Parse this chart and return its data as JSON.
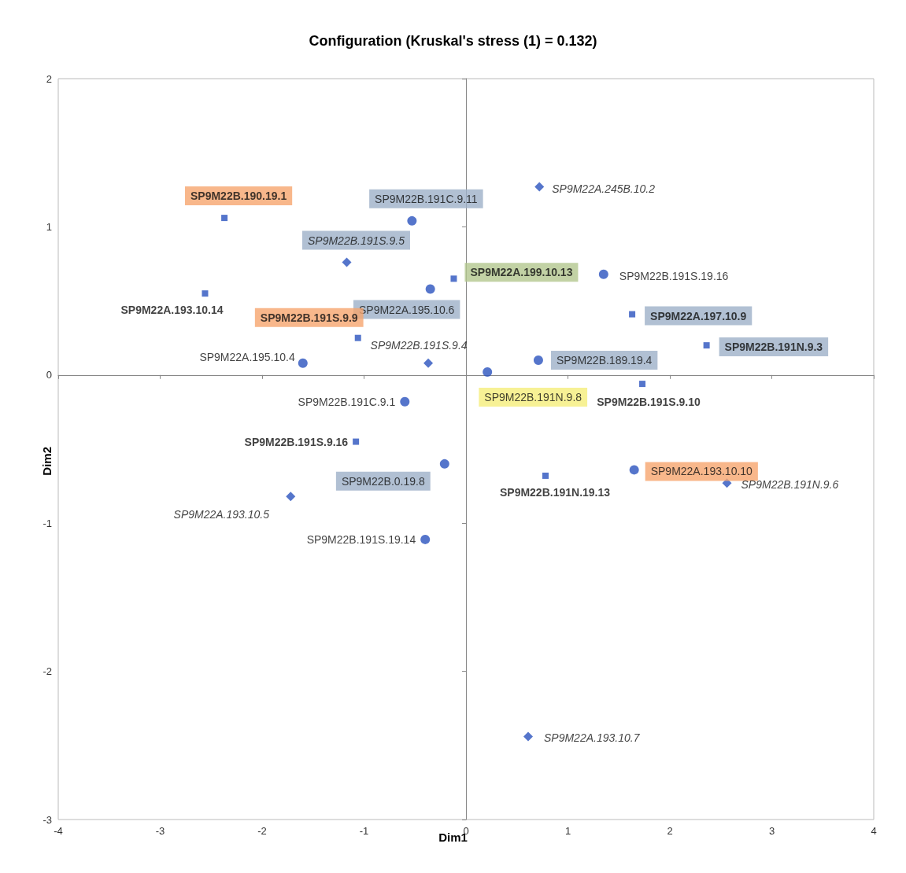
{
  "chart_data": {
    "type": "scatter",
    "title": "Configuration (Kruskal's stress (1) = 0.132)",
    "xlabel": "Dim1",
    "ylabel": "Dim2",
    "xlim": [
      -4,
      4
    ],
    "xticks": [
      -4,
      -3,
      -2,
      -1,
      0,
      1,
      2,
      3,
      4
    ],
    "ylim": [
      -3,
      2
    ],
    "yticks": [
      -3,
      -2,
      -1,
      0,
      1,
      2
    ],
    "series": [
      {
        "marker": "circle",
        "color": "#2a52be",
        "x": [
          -0.53,
          1.35,
          -0.35,
          -1.6,
          0.71,
          0.21,
          -0.6,
          -0.21,
          1.65,
          -0.4
        ],
        "values": [
          1.04,
          0.68,
          0.58,
          0.08,
          0.1,
          0.02,
          -0.18,
          -0.6,
          -0.64,
          -1.11
        ],
        "value_labels": [
          "SP9M22B.191C.9.11",
          "SP9M22B.191S.19.16",
          "SP9M22A.195.10.6",
          "SP9M22A.195.10.4",
          "SP9M22B.189.19.4",
          "SP9M22B.191N.9.8",
          "SP9M22B.191C.9.1",
          "SP9M22B.0.19.8",
          "SP9M22A.193.10.10",
          "SP9M22B.191S.19.14"
        ]
      },
      {
        "marker": "diamond",
        "color": "#2a52be",
        "x": [
          0.72,
          -1.17,
          -0.37,
          2.56,
          -1.72,
          0.61
        ],
        "values": [
          1.27,
          0.76,
          0.08,
          -0.73,
          -0.82,
          -2.44
        ],
        "value_labels": [
          "SP9M22A.245B.10.2",
          "SP9M22B.191S.9.5",
          "SP9M22B.191S.9.4",
          "SP9M22B.191N.9.6",
          "SP9M22A.193.10.5",
          "SP9M22A.193.10.7"
        ]
      },
      {
        "marker": "square",
        "color": "#2a52be",
        "x": [
          -2.37,
          -0.12,
          -2.56,
          -1.06,
          1.63,
          2.36,
          1.73,
          -1.08,
          0.78
        ],
        "values": [
          1.06,
          0.65,
          0.55,
          0.25,
          0.41,
          0.2,
          -0.06,
          -0.45,
          -0.68
        ],
        "value_labels": [
          "SP9M22B.190.19.1",
          "SP9M22A.199.10.13",
          "SP9M22A.193.10.14",
          "SP9M22B.191S.9.9",
          "SP9M22A.197.10.9",
          "SP9M22B.191N.9.3",
          "SP9M22B.191S.9.10",
          "SP9M22B.191S.9.16",
          "SP9M22B.191N.19.13"
        ]
      }
    ]
  }
}
